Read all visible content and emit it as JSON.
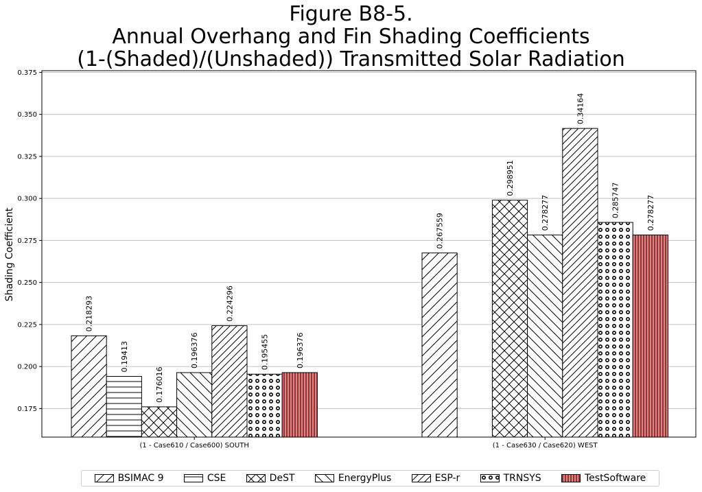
{
  "chart_data": {
    "type": "bar",
    "title": [
      "Figure B8-5.",
      "Annual Overhang and Fin Shading Coefficients",
      "(1-(Shaded)/(Unshaded)) Transmitted Solar Radiation"
    ],
    "xlabel": "",
    "ylabel": "Shading Coefficient",
    "ylim": [
      0.158,
      0.376
    ],
    "yticks": [
      "0.175",
      "0.200",
      "0.225",
      "0.250",
      "0.275",
      "0.300",
      "0.325",
      "0.350",
      "0.375"
    ],
    "grid": "horizontal",
    "legend_position": "bottom-center",
    "categories": [
      "(1 - Case610 / Case600) SOUTH",
      "(1 - Case630 / Case620) WEST"
    ],
    "series": [
      {
        "name": "BSIMAC 9",
        "values": [
          0.218293,
          0.267559
        ],
        "labels": [
          "0.218293",
          "0.267559"
        ],
        "color": "#ffffff",
        "hatch": "forward-slash-wide"
      },
      {
        "name": "CSE",
        "values": [
          0.19413,
          null
        ],
        "labels": [
          "0.19413",
          ""
        ],
        "color": "#ffffff",
        "hatch": "horizontal"
      },
      {
        "name": "DeST",
        "values": [
          0.176016,
          0.298951
        ],
        "labels": [
          "0.176016",
          "0.298951"
        ],
        "color": "#ffffff",
        "hatch": "cross"
      },
      {
        "name": "EnergyPlus",
        "values": [
          0.196376,
          0.278277
        ],
        "labels": [
          "0.196376",
          "0.278277"
        ],
        "color": "#ffffff",
        "hatch": "back-slash"
      },
      {
        "name": "ESP-r",
        "values": [
          0.224296,
          0.34164
        ],
        "labels": [
          "0.224296",
          "0.34164"
        ],
        "color": "#ffffff",
        "hatch": "forward-slash-dense"
      },
      {
        "name": "TRNSYS",
        "values": [
          0.195455,
          0.285747
        ],
        "labels": [
          "0.195455",
          "0.285747"
        ],
        "color": "#ffffff",
        "hatch": "circles"
      },
      {
        "name": "TestSoftware",
        "values": [
          0.196376,
          0.278277
        ],
        "labels": [
          "0.196376",
          "0.278277"
        ],
        "color": "#f47c7c",
        "hatch": "vertical"
      }
    ]
  }
}
